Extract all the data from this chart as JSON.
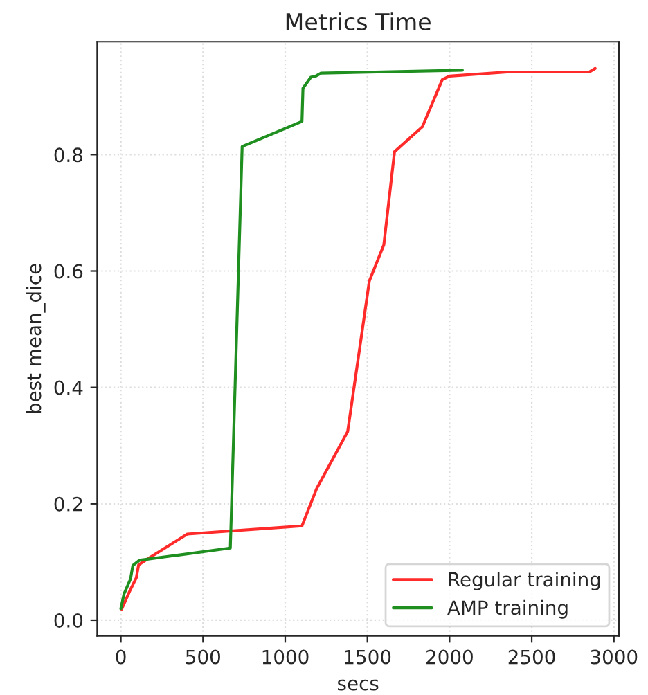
{
  "chart_data": {
    "type": "line",
    "title": "Metrics Time",
    "xlabel": "secs",
    "ylabel": "best mean_dice",
    "series": [
      {
        "name": "Regular training",
        "color": "#ff2a2a",
        "x": [
          5,
          54,
          94,
          108,
          167,
          404,
          1102,
          1191,
          1380,
          1512,
          1600,
          1665,
          1835,
          1956,
          2000,
          2350,
          2850,
          2886
        ],
        "values": [
          0.019,
          0.05,
          0.073,
          0.095,
          0.106,
          0.148,
          0.162,
          0.226,
          0.324,
          0.583,
          0.645,
          0.805,
          0.848,
          0.929,
          0.935,
          0.942,
          0.942,
          0.948
        ]
      },
      {
        "name": "AMP training",
        "color": "#1f8f1f",
        "x": [
          0,
          19,
          59,
          73,
          113,
          666,
          738,
          1102,
          1108,
          1156,
          1186,
          1218,
          2078
        ],
        "values": [
          0.02,
          0.045,
          0.071,
          0.094,
          0.103,
          0.124,
          0.814,
          0.857,
          0.914,
          0.933,
          0.935,
          0.94,
          0.945
        ]
      }
    ],
    "xlim": [
      -144,
      3030
    ],
    "xticks": [
      0,
      500,
      1000,
      1500,
      2000,
      2500,
      3000
    ],
    "ylim": [
      -0.027,
      0.994
    ],
    "yticks": [
      {
        "value": 0,
        "label": "0.0"
      },
      {
        "value": 0.2,
        "label": "0.2"
      },
      {
        "value": 0.4,
        "label": "0.4"
      },
      {
        "value": 0.6,
        "label": "0.6"
      },
      {
        "value": 0.8,
        "label": "0.8"
      }
    ],
    "grid": true,
    "legend": "lower right",
    "line_style": "solid",
    "marker": "none"
  }
}
